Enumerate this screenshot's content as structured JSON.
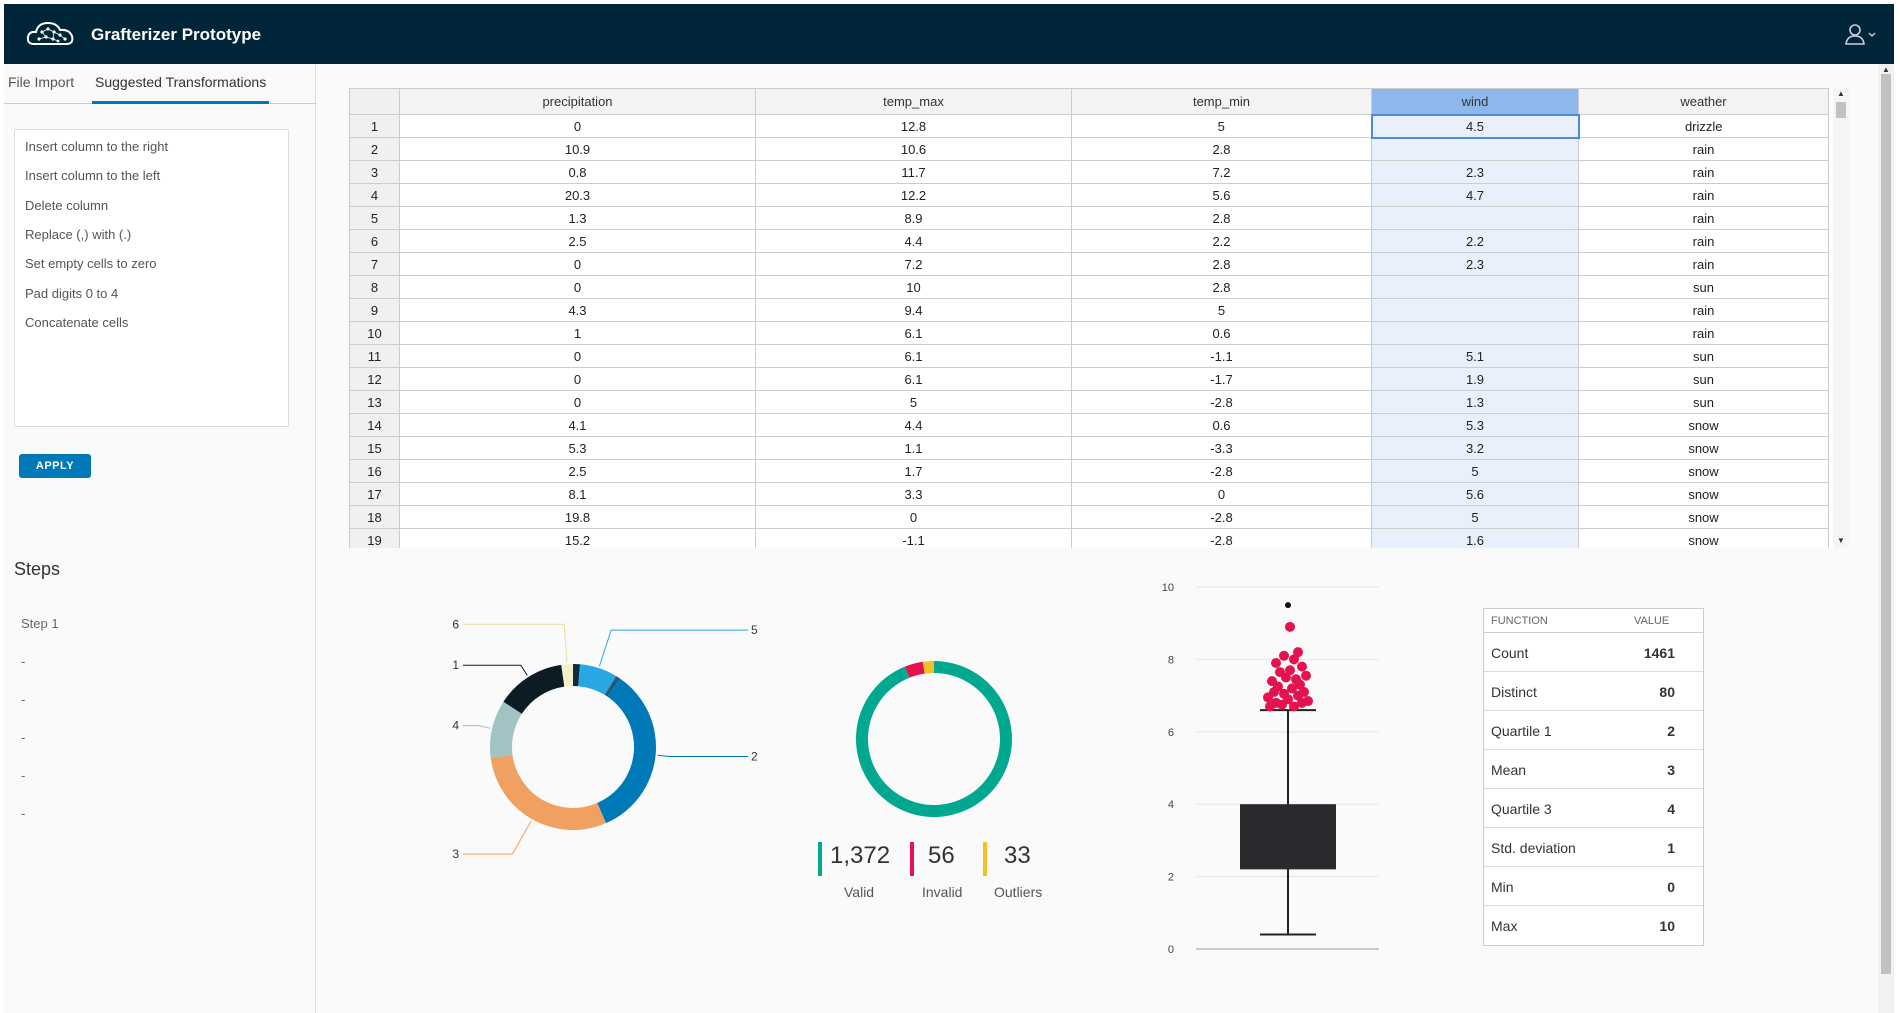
{
  "app": {
    "title": "Grafterizer Prototype"
  },
  "icons": {
    "logo": "cloud-network-logo",
    "user": "user-icon",
    "chevron": "chevron-down-icon"
  },
  "colors": {
    "header": "#002538",
    "accent": "#0079b8",
    "valid": "#00a88f",
    "invalid": "#e4124f",
    "outliers": "#f4c022",
    "selected_column": "#8eb8eb"
  },
  "sidebar": {
    "tabs": [
      {
        "label": "File Import",
        "active": false
      },
      {
        "label": "Suggested Transformations",
        "active": true
      }
    ],
    "transformations": [
      "Insert column to the right",
      "Insert column to the left",
      "Delete column",
      "Replace (,) with (.)",
      "Set empty cells to zero",
      "Pad digits 0 to 4",
      "Concatenate cells"
    ],
    "apply_label": "APPLY",
    "steps_title": "Steps",
    "steps": [
      "Step 1",
      "-",
      "-",
      "-",
      "-",
      "-"
    ]
  },
  "grid": {
    "columns": [
      "precipitation",
      "temp_max",
      "temp_min",
      "wind",
      "weather"
    ],
    "selected_column": "wind",
    "rows": [
      [
        "1",
        "0",
        "12.8",
        "5",
        "4.5",
        "drizzle"
      ],
      [
        "2",
        "10.9",
        "10.6",
        "2.8",
        "",
        "rain"
      ],
      [
        "3",
        "0.8",
        "11.7",
        "7.2",
        "2.3",
        "rain"
      ],
      [
        "4",
        "20.3",
        "12.2",
        "5.6",
        "4.7",
        "rain"
      ],
      [
        "5",
        "1.3",
        "8.9",
        "2.8",
        "",
        "rain"
      ],
      [
        "6",
        "2.5",
        "4.4",
        "2.2",
        "2.2",
        "rain"
      ],
      [
        "7",
        "0",
        "7.2",
        "2.8",
        "2.3",
        "rain"
      ],
      [
        "8",
        "0",
        "10",
        "2.8",
        "",
        "sun"
      ],
      [
        "9",
        "4.3",
        "9.4",
        "5",
        "",
        "rain"
      ],
      [
        "10",
        "1",
        "6.1",
        "0.6",
        "",
        "rain"
      ],
      [
        "11",
        "0",
        "6.1",
        "-1.1",
        "5.1",
        "sun"
      ],
      [
        "12",
        "0",
        "6.1",
        "-1.7",
        "1.9",
        "sun"
      ],
      [
        "13",
        "0",
        "5",
        "-2.8",
        "1.3",
        "sun"
      ],
      [
        "14",
        "4.1",
        "4.4",
        "0.6",
        "5.3",
        "snow"
      ],
      [
        "15",
        "5.3",
        "1.1",
        "-3.3",
        "3.2",
        "snow"
      ],
      [
        "16",
        "2.5",
        "1.7",
        "-2.8",
        "5",
        "snow"
      ],
      [
        "17",
        "8.1",
        "3.3",
        "0",
        "5.6",
        "snow"
      ],
      [
        "18",
        "19.8",
        "0",
        "-2.8",
        "5",
        "snow"
      ],
      [
        "19",
        "15.2",
        "-1.1",
        "-2.8",
        "1.6",
        "snow"
      ]
    ]
  },
  "chart_data": [
    {
      "type": "pie",
      "style": "donut",
      "slices": [
        {
          "label": "1",
          "value": 120,
          "color": "#0d1b24"
        },
        {
          "label": "2",
          "value": 300,
          "color": "#0079b8"
        },
        {
          "label": "3",
          "value": 260,
          "color": "#f0a060"
        },
        {
          "label": "4",
          "value": 100,
          "color": "#a0c4c4"
        },
        {
          "label": "5",
          "value": 65,
          "color": "#29a7e0"
        },
        {
          "label": "6",
          "value": 20,
          "color": "#f5efc8"
        },
        {
          "label": "",
          "value": 12,
          "color": "#0b2d44"
        },
        {
          "label": "",
          "value": 8,
          "color": "#1e5a7a"
        }
      ]
    },
    {
      "type": "pie",
      "style": "donut",
      "slices": [
        {
          "label": "Valid",
          "value": 1372,
          "display": "1,372",
          "color": "#00a88f"
        },
        {
          "label": "Invalid",
          "value": 56,
          "display": "56",
          "color": "#e4124f"
        },
        {
          "label": "Outliers",
          "value": 33,
          "display": "33",
          "color": "#f4c022"
        }
      ]
    },
    {
      "type": "boxplot",
      "ylim": [
        0,
        10
      ],
      "yticks": [
        "0",
        "2",
        "4",
        "6",
        "8",
        "10"
      ],
      "grid": true,
      "box": {
        "q1": 2.2,
        "q3": 4,
        "whisker_low": 0.4,
        "whisker_high": 6.6
      },
      "outliers": [
        6.7,
        6.7,
        6.75,
        6.8,
        6.8,
        6.85,
        6.9,
        6.95,
        7.0,
        7.05,
        7.1,
        7.1,
        7.2,
        7.25,
        7.3,
        7.4,
        7.45,
        7.5,
        7.55,
        7.65,
        7.7,
        7.8,
        7.9,
        8.0,
        8.1,
        8.2,
        8.9,
        9.5
      ],
      "outlier_color": "#e4124f",
      "extreme_color": "#111111"
    }
  ],
  "stats": {
    "headers": {
      "function": "FUNCTION",
      "value": "VALUE"
    },
    "rows": [
      {
        "fn": "Count",
        "val": "1461"
      },
      {
        "fn": "Distinct",
        "val": "80"
      },
      {
        "fn": "Quartile 1",
        "val": "2"
      },
      {
        "fn": "Mean",
        "val": "3"
      },
      {
        "fn": "Quartile 3",
        "val": "4"
      },
      {
        "fn": "Std. deviation",
        "val": "1"
      },
      {
        "fn": "Min",
        "val": "0"
      },
      {
        "fn": "Max",
        "val": "10"
      }
    ]
  }
}
